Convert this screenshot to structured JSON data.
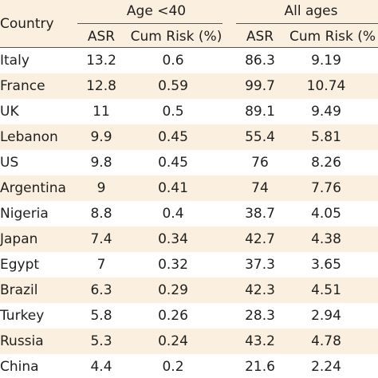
{
  "header": {
    "country_label": "Country",
    "group1_label": "Age <40",
    "group2_label": "All ages",
    "asr_label": "ASR",
    "cumrisk_label": "Cum Risk (%)",
    "asr_label_2": "ASR",
    "cumrisk_label_2": "Cum Risk (%"
  },
  "rows": [
    {
      "country": "Italy",
      "asr_u40": "13.2",
      "cum_u40": "0.6",
      "asr_all": "86.3",
      "cum_all": "9.19"
    },
    {
      "country": "France",
      "asr_u40": "12.8",
      "cum_u40": "0.59",
      "asr_all": "99.7",
      "cum_all": "10.74"
    },
    {
      "country": "UK",
      "asr_u40": "11",
      "cum_u40": "0.5",
      "asr_all": "89.1",
      "cum_all": "9.49"
    },
    {
      "country": "Lebanon",
      "asr_u40": "9.9",
      "cum_u40": "0.45",
      "asr_all": "55.4",
      "cum_all": "5.81"
    },
    {
      "country": "US",
      "asr_u40": "9.8",
      "cum_u40": "0.45",
      "asr_all": "76",
      "cum_all": "8.26"
    },
    {
      "country": "Argentina",
      "asr_u40": "9",
      "cum_u40": "0.41",
      "asr_all": "74",
      "cum_all": "7.76"
    },
    {
      "country": "Nigeria",
      "asr_u40": "8.8",
      "cum_u40": "0.4",
      "asr_all": "38.7",
      "cum_all": "4.05"
    },
    {
      "country": "Japan",
      "asr_u40": "7.4",
      "cum_u40": "0.34",
      "asr_all": "42.7",
      "cum_all": "4.38"
    },
    {
      "country": "Egypt",
      "asr_u40": "7",
      "cum_u40": "0.32",
      "asr_all": "37.3",
      "cum_all": "3.65"
    },
    {
      "country": "Brazil",
      "asr_u40": "6.3",
      "cum_u40": "0.29",
      "asr_all": "42.3",
      "cum_all": "4.51"
    },
    {
      "country": "Turkey",
      "asr_u40": "5.8",
      "cum_u40": "0.26",
      "asr_all": "28.3",
      "cum_all": "2.94"
    },
    {
      "country": "Russia",
      "asr_u40": "5.3",
      "cum_u40": "0.24",
      "asr_all": "43.2",
      "cum_all": "4.78"
    },
    {
      "country": "China",
      "asr_u40": "4.4",
      "cum_u40": "0.2",
      "asr_all": "21.6",
      "cum_all": "2.24"
    }
  ]
}
